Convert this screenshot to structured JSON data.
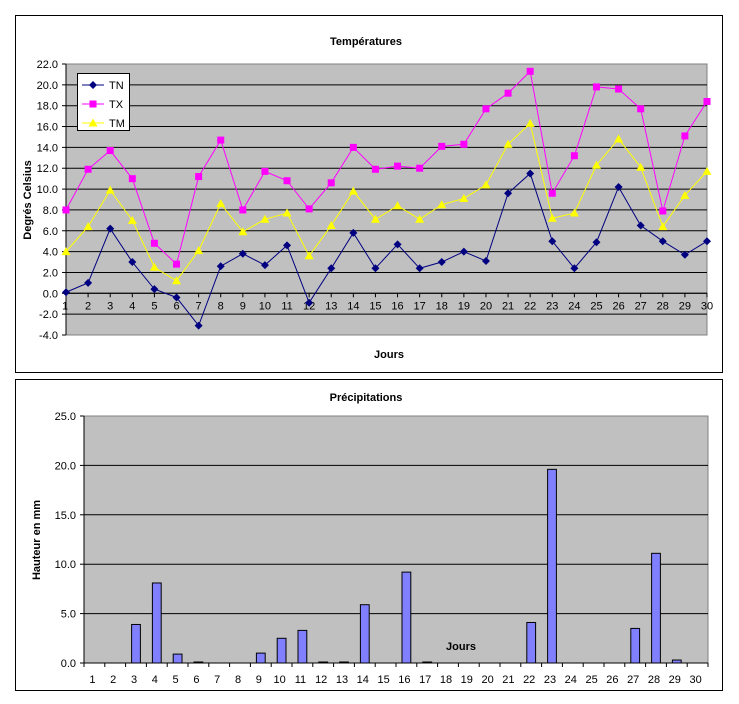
{
  "chart_data": [
    {
      "type": "line",
      "title": "Températures",
      "xlabel": "Jours",
      "ylabel": "Degrés Celsius",
      "ylim": [
        -4,
        22
      ],
      "ytick_step": 2,
      "grid": true,
      "legend_position": "top-left",
      "colors": {
        "plot_bg": "#C0C0C0",
        "TN": "#000080",
        "TX": "#FF00FF",
        "TM": "#FFFF00"
      },
      "categories": [
        "1",
        "2",
        "3",
        "4",
        "5",
        "6",
        "7",
        "8",
        "9",
        "10",
        "11",
        "12",
        "13",
        "14",
        "15",
        "16",
        "17",
        "18",
        "19",
        "20",
        "21",
        "22",
        "23",
        "24",
        "25",
        "26",
        "27",
        "28",
        "29",
        "30"
      ],
      "series": [
        {
          "name": "TN",
          "marker": "diamond",
          "values": [
            0.1,
            1.0,
            6.2,
            3.0,
            0.4,
            -0.4,
            -3.1,
            2.6,
            3.8,
            2.7,
            4.6,
            -0.9,
            2.4,
            5.8,
            2.4,
            4.7,
            2.4,
            3.0,
            4.0,
            3.1,
            9.6,
            11.5,
            5.0,
            2.4,
            4.9,
            10.2,
            6.5,
            5.0,
            3.7,
            5.0
          ]
        },
        {
          "name": "TX",
          "marker": "square",
          "values": [
            8.0,
            11.9,
            13.7,
            11.0,
            4.8,
            2.8,
            11.2,
            14.7,
            8.0,
            11.7,
            10.8,
            8.1,
            10.6,
            14.0,
            11.9,
            12.2,
            12.0,
            14.1,
            14.3,
            17.7,
            19.2,
            21.3,
            9.6,
            13.2,
            19.8,
            19.6,
            17.7,
            7.9,
            15.1,
            18.4
          ]
        },
        {
          "name": "TM",
          "marker": "triangle",
          "values": [
            4.0,
            6.4,
            9.9,
            7.0,
            2.5,
            1.2,
            4.1,
            8.6,
            5.9,
            7.1,
            7.7,
            3.6,
            6.5,
            9.8,
            7.1,
            8.4,
            7.1,
            8.5,
            9.1,
            10.4,
            14.3,
            16.3,
            7.2,
            7.7,
            12.3,
            14.8,
            12.1,
            6.4,
            9.4,
            11.7
          ]
        }
      ]
    },
    {
      "type": "bar",
      "title": "Précipitations",
      "xlabel": "Jours",
      "ylabel": "Hauteur en mm",
      "ylim": [
        0,
        25
      ],
      "ytick_step": 5,
      "grid": true,
      "colors": {
        "plot_bg": "#C0C0C0",
        "bar": "#8080FF"
      },
      "categories": [
        "1",
        "2",
        "3",
        "4",
        "5",
        "6",
        "7",
        "8",
        "9",
        "10",
        "11",
        "12",
        "13",
        "14",
        "15",
        "16",
        "17",
        "18",
        "19",
        "20",
        "21",
        "22",
        "23",
        "24",
        "25",
        "26",
        "27",
        "28",
        "29",
        "30"
      ],
      "values": [
        0,
        0,
        3.9,
        8.1,
        0.9,
        0.1,
        0,
        0,
        1.0,
        2.5,
        3.3,
        0.1,
        0.1,
        5.9,
        0,
        9.2,
        0.1,
        0,
        0,
        0,
        0,
        4.1,
        19.6,
        0,
        0,
        0,
        3.5,
        11.1,
        0.3,
        0
      ]
    }
  ]
}
